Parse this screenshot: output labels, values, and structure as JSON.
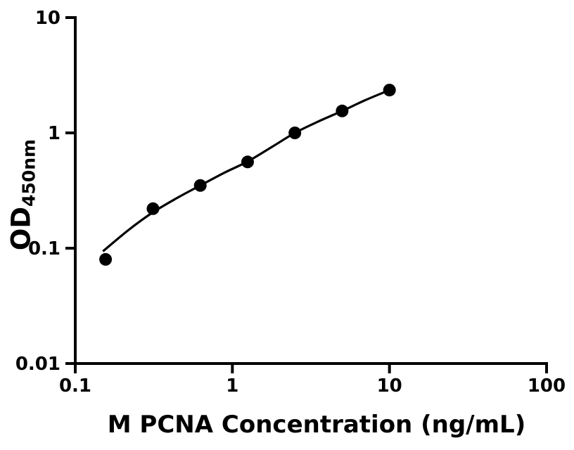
{
  "figure": {
    "background_color": "#ffffff",
    "foreground_color": "#000000"
  },
  "chart_data": {
    "type": "scatter",
    "title": "",
    "xlabel": "M PCNA Concentration (ng/mL)",
    "ylabel": "OD",
    "ylabel_subscript": "450nm",
    "xscale": "log",
    "yscale": "log",
    "xlim": [
      0.1,
      100
    ],
    "ylim": [
      0.01,
      10
    ],
    "x_ticks": [
      0.1,
      1,
      10,
      100
    ],
    "x_tick_labels": [
      "0.1",
      "1",
      "10",
      "100"
    ],
    "y_ticks": [
      0.01,
      0.1,
      1,
      10
    ],
    "y_tick_labels": [
      "0.01",
      "0.1",
      "1",
      "10"
    ],
    "grid": false,
    "legend": null,
    "series": [
      {
        "name": "standard-curve-points",
        "marker": "circle",
        "color": "#000000",
        "x": [
          0.156,
          0.3125,
          0.625,
          1.25,
          2.5,
          5,
          10
        ],
        "y": [
          0.08,
          0.22,
          0.35,
          0.56,
          1.0,
          1.55,
          2.35
        ]
      }
    ],
    "fit_curve": [
      [
        0.15,
        0.094
      ],
      [
        0.22,
        0.145
      ],
      [
        0.3125,
        0.205
      ],
      [
        0.45,
        0.275
      ],
      [
        0.625,
        0.35
      ],
      [
        0.9,
        0.455
      ],
      [
        1.25,
        0.565
      ],
      [
        1.8,
        0.76
      ],
      [
        2.5,
        1.0
      ],
      [
        3.5,
        1.25
      ],
      [
        5,
        1.55
      ],
      [
        7,
        1.92
      ],
      [
        10,
        2.35
      ]
    ]
  }
}
